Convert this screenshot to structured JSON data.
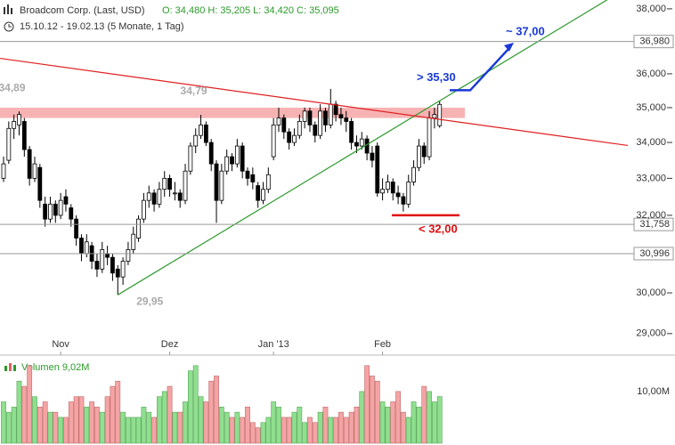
{
  "chart_data": {
    "type": "candlestick",
    "title": "Broadcom Corp. (Last, USD)",
    "quote": "O: 34,480  H: 35,205  L: 34,420  C: 35,095",
    "range": "15.10.12 - 19.02.13 (5 Monate, 1 Tag)",
    "log_scale": true,
    "ylim": [
      28.57,
      38.28
    ],
    "yticks": [
      {
        "value": 38,
        "label": "38,000"
      },
      {
        "value": 36,
        "label": "36,000"
      },
      {
        "value": 35,
        "label": "35,000"
      },
      {
        "value": 34,
        "label": "34,000"
      },
      {
        "value": 33,
        "label": "33,000"
      },
      {
        "value": 32,
        "label": "32,000"
      },
      {
        "value": 30,
        "label": "30,000"
      },
      {
        "value": 29,
        "label": "29,000"
      }
    ],
    "xticks": [
      {
        "value": 11,
        "label": "Nov"
      },
      {
        "value": 32,
        "label": "Dez"
      },
      {
        "value": 52,
        "label": "Jan '13"
      },
      {
        "value": 73,
        "label": "Feb"
      }
    ],
    "levels": [
      {
        "value": 36.98,
        "label": "36,980"
      },
      {
        "value": 31.758,
        "label": "31,758"
      },
      {
        "value": 30.996,
        "label": "30,996"
      }
    ],
    "band": {
      "values": [
        34.7,
        35.0
      ],
      "color": "#f7b3b3"
    },
    "trendlines": [
      {
        "color": "#2e9a2e",
        "points": [
          [
            22,
            29.95
          ],
          [
            84,
            35.2
          ]
        ]
      },
      {
        "color": "#e02020",
        "points": [
          [
            0,
            36.45
          ],
          [
            84,
            34.66
          ]
        ]
      }
    ],
    "annotations": [
      {
        "label": "34,89",
        "index": 3,
        "value": 34.89,
        "position": "above",
        "color": "#aaaaaa"
      },
      {
        "label": "34,79",
        "index": 38,
        "value": 34.79,
        "position": "above",
        "color": "#aaaaaa"
      },
      {
        "label": "29,95",
        "index": 22,
        "value": 29.95,
        "position": "below",
        "color": "#aaaaaa"
      }
    ],
    "targets": [
      {
        "label": "> 35,30",
        "value": 35.3,
        "color": "#1a3ad6"
      },
      {
        "label": "~ 37,00",
        "value": 37.0,
        "color": "#1a3ad6"
      },
      {
        "label": "< 32,00",
        "value": 32.0,
        "color": "#e01010"
      }
    ],
    "candles": [
      [
        33.0,
        33.6,
        32.9,
        33.4
      ],
      [
        33.5,
        34.6,
        33.4,
        34.4
      ],
      [
        34.4,
        34.8,
        34.1,
        34.6
      ],
      [
        34.5,
        34.89,
        34.2,
        34.8
      ],
      [
        34.6,
        34.7,
        33.6,
        33.8
      ],
      [
        33.8,
        33.9,
        32.8,
        33.0
      ],
      [
        33.0,
        33.6,
        32.9,
        33.4
      ],
      [
        33.3,
        33.4,
        32.2,
        32.4
      ],
      [
        32.3,
        32.5,
        31.7,
        31.9
      ],
      [
        31.9,
        32.5,
        31.8,
        32.3
      ],
      [
        32.3,
        32.4,
        31.8,
        32.0
      ],
      [
        32.0,
        32.6,
        31.9,
        32.4
      ],
      [
        32.5,
        32.7,
        32.1,
        32.3
      ],
      [
        32.2,
        32.3,
        31.7,
        31.9
      ],
      [
        31.9,
        32.0,
        31.2,
        31.4
      ],
      [
        31.4,
        31.5,
        30.8,
        31.0
      ],
      [
        31.0,
        31.5,
        30.9,
        31.3
      ],
      [
        31.2,
        31.3,
        30.6,
        30.8
      ],
      [
        30.8,
        31.0,
        30.4,
        30.6
      ],
      [
        30.6,
        31.3,
        30.5,
        31.1
      ],
      [
        31.0,
        31.2,
        30.7,
        30.9
      ],
      [
        30.9,
        31.0,
        30.3,
        30.5
      ],
      [
        30.6,
        30.7,
        29.95,
        30.4
      ],
      [
        30.4,
        30.9,
        30.2,
        30.8
      ],
      [
        30.8,
        31.3,
        30.7,
        31.1
      ],
      [
        31.1,
        31.7,
        31.0,
        31.5
      ],
      [
        31.4,
        32.0,
        31.3,
        31.9
      ],
      [
        31.9,
        32.6,
        31.8,
        32.4
      ],
      [
        32.4,
        32.8,
        32.2,
        32.6
      ],
      [
        32.6,
        32.7,
        32.1,
        32.3
      ],
      [
        32.3,
        32.9,
        32.2,
        32.7
      ],
      [
        32.7,
        33.2,
        32.5,
        33.0
      ],
      [
        33.0,
        33.1,
        32.5,
        32.7
      ],
      [
        32.6,
        32.9,
        32.4,
        32.6
      ],
      [
        32.6,
        32.7,
        32.2,
        32.4
      ],
      [
        32.4,
        33.4,
        32.3,
        33.2
      ],
      [
        33.2,
        34.0,
        33.1,
        33.9
      ],
      [
        33.9,
        34.4,
        33.7,
        34.2
      ],
      [
        34.2,
        34.79,
        34.1,
        34.5
      ],
      [
        34.5,
        34.6,
        33.9,
        34.0
      ],
      [
        34.0,
        34.1,
        33.2,
        33.4
      ],
      [
        33.4,
        33.5,
        31.8,
        32.4
      ],
      [
        32.4,
        33.4,
        32.3,
        33.2
      ],
      [
        33.2,
        33.8,
        33.1,
        33.6
      ],
      [
        33.6,
        33.7,
        33.2,
        33.4
      ],
      [
        33.4,
        34.1,
        33.3,
        33.9
      ],
      [
        33.9,
        34.0,
        33.0,
        33.2
      ],
      [
        33.2,
        33.3,
        32.8,
        33.0
      ],
      [
        33.1,
        33.3,
        32.7,
        32.9
      ],
      [
        32.8,
        32.9,
        32.2,
        32.4
      ],
      [
        32.4,
        32.9,
        32.3,
        32.7
      ],
      [
        32.7,
        33.3,
        32.6,
        33.1
      ],
      [
        33.6,
        34.7,
        33.5,
        34.5
      ],
      [
        34.5,
        35.0,
        34.3,
        34.7
      ],
      [
        34.7,
        34.8,
        34.1,
        34.3
      ],
      [
        34.3,
        34.4,
        33.8,
        34.0
      ],
      [
        34.0,
        34.4,
        33.9,
        34.2
      ],
      [
        34.2,
        34.8,
        34.1,
        34.6
      ],
      [
        34.6,
        35.0,
        34.4,
        34.9
      ],
      [
        34.9,
        35.0,
        34.3,
        34.5
      ],
      [
        34.5,
        34.6,
        34.0,
        34.2
      ],
      [
        34.2,
        35.1,
        34.1,
        34.9
      ],
      [
        34.9,
        35.0,
        34.3,
        34.5
      ],
      [
        34.5,
        35.55,
        34.4,
        35.1
      ],
      [
        35.1,
        35.2,
        34.6,
        34.8
      ],
      [
        34.8,
        35.0,
        34.5,
        34.7
      ],
      [
        34.7,
        34.9,
        34.3,
        34.6
      ],
      [
        34.6,
        34.7,
        33.8,
        34.0
      ],
      [
        34.0,
        34.2,
        33.7,
        33.9
      ],
      [
        33.9,
        34.3,
        33.8,
        34.1
      ],
      [
        34.1,
        34.2,
        33.5,
        33.7
      ],
      [
        33.7,
        33.9,
        33.3,
        33.5
      ],
      [
        33.9,
        34.0,
        32.5,
        32.6
      ],
      [
        32.6,
        33.0,
        32.4,
        32.7
      ],
      [
        32.7,
        33.1,
        32.6,
        32.9
      ],
      [
        32.9,
        33.0,
        32.4,
        32.6
      ],
      [
        32.6,
        32.8,
        32.3,
        32.5
      ],
      [
        32.5,
        32.6,
        32.1,
        32.3
      ],
      [
        32.3,
        33.1,
        32.2,
        32.9
      ],
      [
        32.9,
        33.5,
        32.8,
        33.3
      ],
      [
        33.3,
        34.1,
        33.2,
        33.9
      ],
      [
        33.9,
        34.0,
        33.4,
        33.6
      ],
      [
        33.6,
        34.9,
        33.5,
        34.7
      ],
      [
        34.7,
        35.0,
        34.4,
        34.8
      ],
      [
        34.48,
        35.205,
        34.42,
        35.095
      ]
    ],
    "volume": {
      "label": "Volumen 9,02M",
      "ylim": [
        0,
        16
      ],
      "yticks": [
        {
          "value": 10,
          "label": "10,00M"
        }
      ],
      "values": [
        8,
        6,
        7,
        12,
        11,
        15,
        9,
        7,
        8,
        6,
        6,
        5,
        5,
        8,
        9,
        9,
        7,
        8,
        7,
        6,
        9,
        11,
        12,
        6,
        5,
        5,
        5,
        7,
        6,
        5,
        9,
        10,
        11,
        6,
        6,
        8,
        14,
        15,
        9,
        8,
        12,
        13,
        7,
        6,
        5,
        6,
        5,
        7,
        4,
        3,
        4,
        5,
        8,
        7,
        5,
        5,
        6,
        7,
        4,
        5,
        4,
        6,
        7,
        5,
        5,
        6,
        5,
        6,
        7,
        10,
        15,
        13,
        12,
        8,
        7,
        8,
        10,
        6,
        5,
        8,
        7,
        11,
        10,
        8,
        9.02
      ],
      "up_color": "#90df90",
      "down_color": "#f4a4a4"
    }
  }
}
